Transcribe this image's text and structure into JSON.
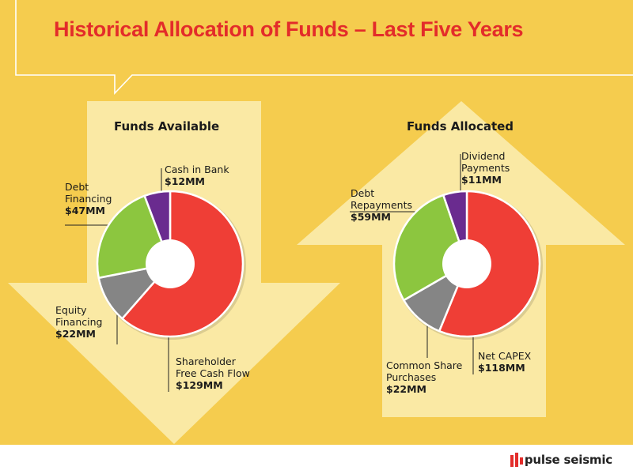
{
  "header": {
    "title": "Historical Allocation of Funds – Last Five Years"
  },
  "colors": {
    "background": "#f5cc4e",
    "arrow": "#fae9a4",
    "red": "#ef3e36",
    "green": "#8cc63f",
    "gray": "#858585",
    "purple": "#6a2b8f",
    "title": "#e32c2a"
  },
  "chart_data": [
    {
      "type": "pie",
      "title": "Funds Available",
      "slices": [
        {
          "name": "Shareholder Free Cash Flow",
          "value": 129,
          "label": "$129MM",
          "color": "#ef3e36"
        },
        {
          "name": "Equity Financing",
          "value": 22,
          "label": "$22MM",
          "color": "#858585"
        },
        {
          "name": "Debt Financing",
          "value": 47,
          "label": "$47MM",
          "color": "#8cc63f"
        },
        {
          "name": "Cash in Bank",
          "value": 12,
          "label": "$12MM",
          "color": "#6a2b8f"
        }
      ],
      "labels": {
        "cash": [
          "Cash in Bank"
        ],
        "debt": [
          "Debt",
          "Financing"
        ],
        "equity": [
          "Equity",
          "Financing"
        ],
        "sfcf": [
          "Shareholder",
          "Free Cash Flow"
        ]
      }
    },
    {
      "type": "pie",
      "title": "Funds Allocated",
      "slices": [
        {
          "name": "Net CAPEX",
          "value": 118,
          "label": "$118MM",
          "color": "#ef3e36"
        },
        {
          "name": "Common Share Purchases",
          "value": 22,
          "label": "$22MM",
          "color": "#858585"
        },
        {
          "name": "Debt Repayments",
          "value": 59,
          "label": "$59MM",
          "color": "#8cc63f"
        },
        {
          "name": "Dividend Payments",
          "value": 11,
          "label": "$11MM",
          "color": "#6a2b8f"
        }
      ],
      "labels": {
        "dividend": [
          "Dividend",
          "Payments"
        ],
        "debt": [
          "Debt",
          "Repayments"
        ],
        "capex": [
          "Net CAPEX"
        ],
        "common": [
          "Common Share",
          "Purchases"
        ]
      }
    }
  ],
  "footer": {
    "logo_text": "pulse seismic",
    "logo_icon": "pulse-seismic-logo-icon"
  }
}
